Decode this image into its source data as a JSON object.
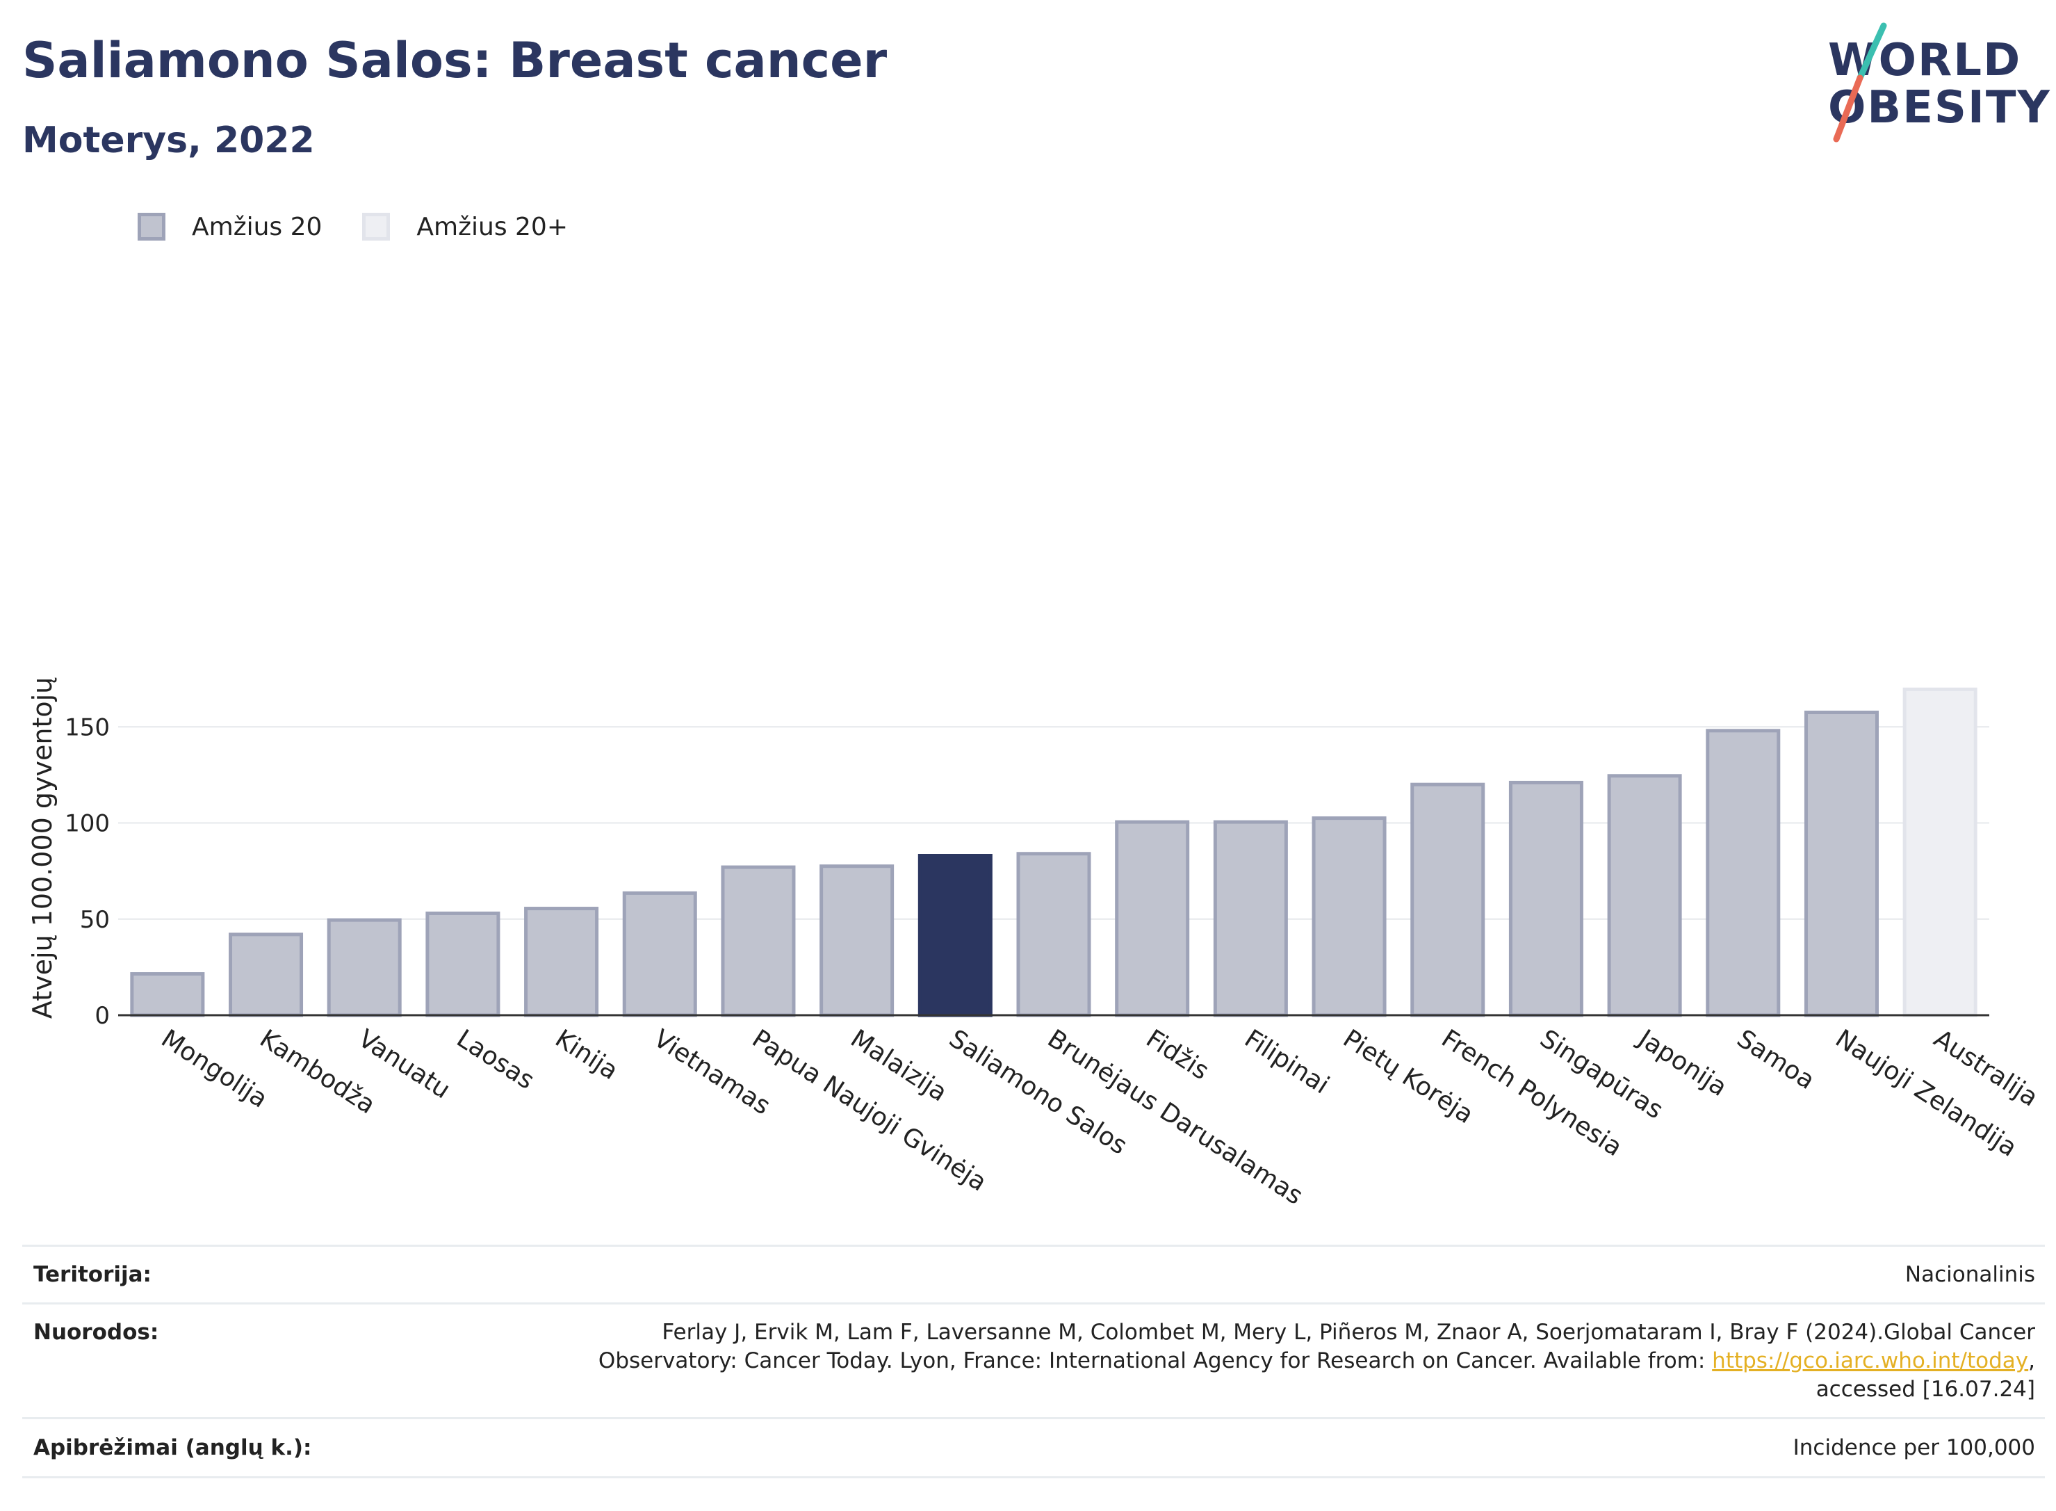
{
  "header": {
    "title": "Saliamono Salos: Breast cancer",
    "subtitle": "Moterys, 2022"
  },
  "logo": {
    "line1": "WORLD",
    "line2": "OBESITY",
    "accent_colors": [
      "#3bbfb0",
      "#e96a55"
    ]
  },
  "legend": [
    {
      "label": "Amžius 20",
      "color": "#c0c3cf"
    },
    {
      "label": "Amžius 20+",
      "color": "#eeeff3"
    }
  ],
  "chart_data": {
    "type": "bar",
    "ylabel": "Atvejų 100.000 gyventojų",
    "xlabel": "",
    "ylim": [
      0,
      175
    ],
    "yticks": [
      0,
      50,
      100,
      150
    ],
    "grid": true,
    "legend_position": "top-left",
    "colors": {
      "default": "#c0c3cf",
      "highlight": "#2b3660",
      "age20plus": "#eeeff3"
    },
    "highlight": "Saliamono Salos",
    "bars": [
      {
        "category": "Mongolija",
        "value": 21.5,
        "series": "Amžius 20"
      },
      {
        "category": "Kambodža",
        "value": 42,
        "series": "Amžius 20"
      },
      {
        "category": "Vanuatu",
        "value": 49.5,
        "series": "Amžius 20"
      },
      {
        "category": "Laosas",
        "value": 53,
        "series": "Amžius 20"
      },
      {
        "category": "Kinija",
        "value": 55.5,
        "series": "Amžius 20"
      },
      {
        "category": "Vietnamas",
        "value": 63.5,
        "series": "Amžius 20"
      },
      {
        "category": "Papua Naujoji Gvinėja",
        "value": 77,
        "series": "Amžius 20"
      },
      {
        "category": "Malaizija",
        "value": 77.5,
        "series": "Amžius 20"
      },
      {
        "category": "Saliamono Salos",
        "value": 83,
        "series": "Amžius 20"
      },
      {
        "category": "Brunėjaus Darusalamas",
        "value": 84,
        "series": "Amžius 20"
      },
      {
        "category": "Fidžis",
        "value": 100.5,
        "series": "Amžius 20"
      },
      {
        "category": "Filipinai",
        "value": 100.5,
        "series": "Amžius 20"
      },
      {
        "category": "Pietų Korėja",
        "value": 102.5,
        "series": "Amžius 20"
      },
      {
        "category": "French Polynesia",
        "value": 120,
        "series": "Amžius 20"
      },
      {
        "category": "Singapūras",
        "value": 121,
        "series": "Amžius 20"
      },
      {
        "category": "Japonija",
        "value": 124.5,
        "series": "Amžius 20"
      },
      {
        "category": "Samoa",
        "value": 148,
        "series": "Amžius 20"
      },
      {
        "category": "Naujoji Zelandija",
        "value": 157.5,
        "series": "Amžius 20"
      },
      {
        "category": "Australija",
        "value": 169.5,
        "series": "Amžius 20+"
      }
    ]
  },
  "footer": {
    "territory_label": "Teritorija:",
    "territory_value": "Nacionalinis",
    "references_label": "Nuorodos:",
    "references_text1": "Ferlay J, Ervik M, Lam F, Laversanne M, Colombet M, Mery L, Piñeros M, Znaor A, Soerjomataram I, Bray F (2024).Global Cancer",
    "references_text2": "Observatory: Cancer Today. Lyon, France: International Agency for Research on Cancer. Available from: ",
    "references_link": "https://gco.iarc.who.int/today",
    "references_text3": ",",
    "references_text4": "accessed [16.07.24]",
    "definitions_label": "Apibrėžimai (anglų k.):",
    "definitions_value": "Incidence per 100,000"
  }
}
